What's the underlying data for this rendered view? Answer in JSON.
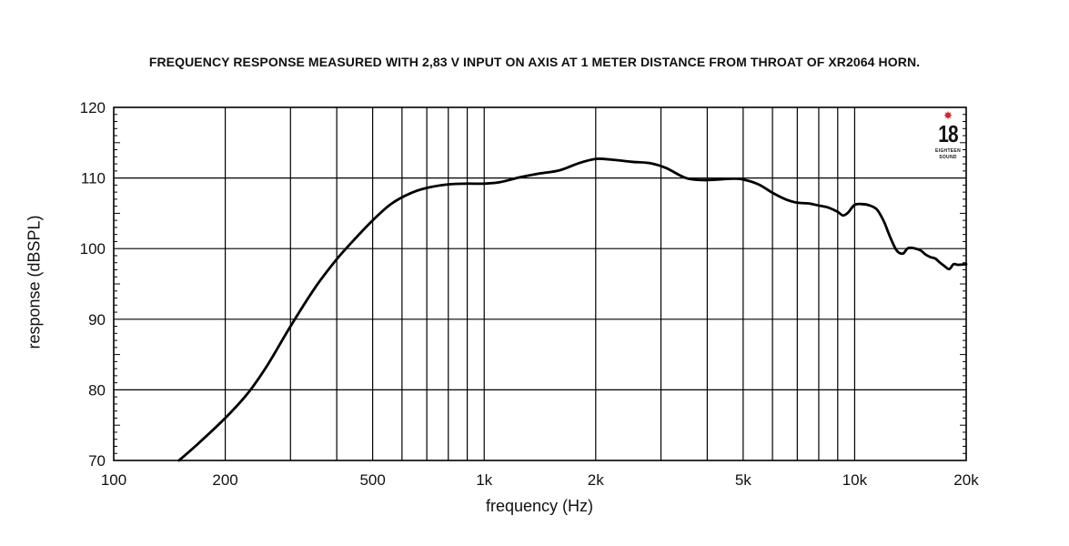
{
  "chart_data": {
    "type": "line",
    "title": "FREQUENCY RESPONSE MEASURED WITH 2,83 V INPUT ON AXIS AT 1 METER DISTANCE FROM THROAT OF XR2064 HORN.",
    "xlabel": "frequency (Hz)",
    "ylabel": "response (dBSPL)",
    "x_scale": "log",
    "xlim": [
      100,
      20000
    ],
    "ylim": [
      70,
      120
    ],
    "x_ticks": [
      100,
      200,
      500,
      1000,
      2000,
      5000,
      10000,
      20000
    ],
    "x_tick_labels": [
      "100",
      "200",
      "500",
      "1k",
      "2k",
      "5k",
      "10k",
      "20k"
    ],
    "y_ticks": [
      70,
      80,
      90,
      100,
      110,
      120
    ],
    "y_tick_labels": [
      "70",
      "80",
      "90",
      "100",
      "110",
      "120"
    ],
    "grid": true,
    "line_color": "#000000",
    "series": [
      {
        "x": [
          150,
          170,
          200,
          230,
          260,
          300,
          350,
          400,
          450,
          500,
          560,
          630,
          700,
          800,
          900,
          1000,
          1100,
          1250,
          1400,
          1600,
          1800,
          2000,
          2200,
          2500,
          2800,
          3100,
          3500,
          3900,
          4300,
          4700,
          5000,
          5500,
          6000,
          6500,
          7000,
          7500,
          8000,
          8500,
          9000,
          9300,
          9600,
          10000,
          10500,
          11000,
          11500,
          12000,
          12500,
          13000,
          13500,
          14000,
          15000,
          15500,
          16000,
          16500,
          17000,
          17500,
          18000,
          18500,
          19000,
          20000
        ],
        "y": [
          70,
          72.5,
          76,
          79.5,
          83.5,
          89,
          94.5,
          98.5,
          101.5,
          104,
          106.3,
          107.8,
          108.6,
          109.1,
          109.2,
          109.2,
          109.4,
          110.1,
          110.6,
          111.1,
          112.1,
          112.7,
          112.6,
          112.3,
          112.1,
          111.4,
          110,
          109.7,
          109.8,
          109.9,
          109.8,
          109.1,
          107.9,
          107,
          106.5,
          106.4,
          106.1,
          105.8,
          105.2,
          104.7,
          105.1,
          106.2,
          106.3,
          106.1,
          105.5,
          103.8,
          101.5,
          99.7,
          99.3,
          100.1,
          99.8,
          99.2,
          98.8,
          98.6,
          98.0,
          97.5,
          97.1,
          97.8,
          97.7,
          97.8
        ]
      }
    ]
  },
  "logo": {
    "number": "18",
    "line1": "SOUND",
    "star": "✸",
    "line0": "EIGHTEEN"
  }
}
